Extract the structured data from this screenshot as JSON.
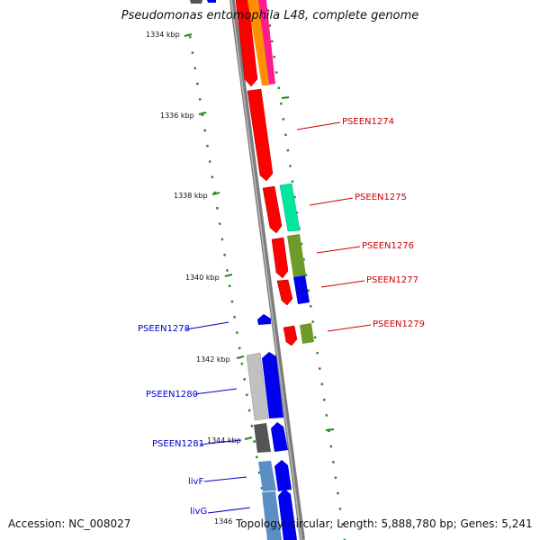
{
  "title": "Pseudomonas entomophila L48, complete genome",
  "footer": {
    "accession": "Accession: NC_008027",
    "summary": "Topology: circular; Length: 5,888,780 bp; Genes: 5,241"
  },
  "ticks": [
    "1334 kbp",
    "1336 kbp",
    "1338 kbp",
    "1340 kbp",
    "1342 kbp",
    "1344 kbp",
    "1346"
  ],
  "gene_labels": {
    "PSEEN1274": "PSEEN1274",
    "PSEEN1275": "PSEEN1275",
    "PSEEN1276": "PSEEN1276",
    "PSEEN1277": "PSEEN1277",
    "PSEEN1279": "PSEEN1279",
    "PSEEN1278": "PSEEN1278",
    "PSEEN1280": "PSEEN1280",
    "PSEEN1281": "PSEEN1281",
    "livF": "livF",
    "livG": "livG"
  },
  "colors": {
    "forward_label": "#cc0000",
    "reverse_label": "#0000cc",
    "tick_green": "#2e8b2e",
    "backbone": "#808080"
  }
}
